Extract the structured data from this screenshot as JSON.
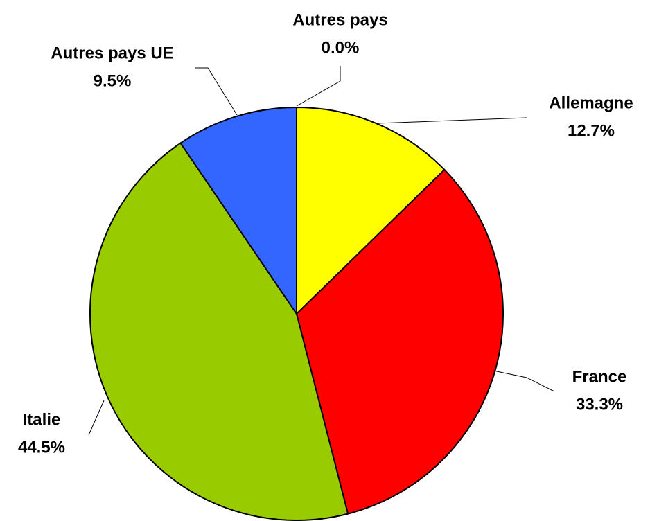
{
  "chart_data": {
    "type": "pie",
    "categories": [
      "Allemagne",
      "France",
      "Italie",
      "Autres pays UE",
      "Autres pays"
    ],
    "values": [
      12.7,
      33.3,
      44.5,
      9.5,
      0.0
    ],
    "value_labels": [
      "12.7%",
      "33.3%",
      "44.5%",
      "9.5%",
      "0.0%"
    ],
    "colors": [
      "#ffff00",
      "#ff0000",
      "#99cc00",
      "#3366ff",
      "#808080"
    ]
  }
}
